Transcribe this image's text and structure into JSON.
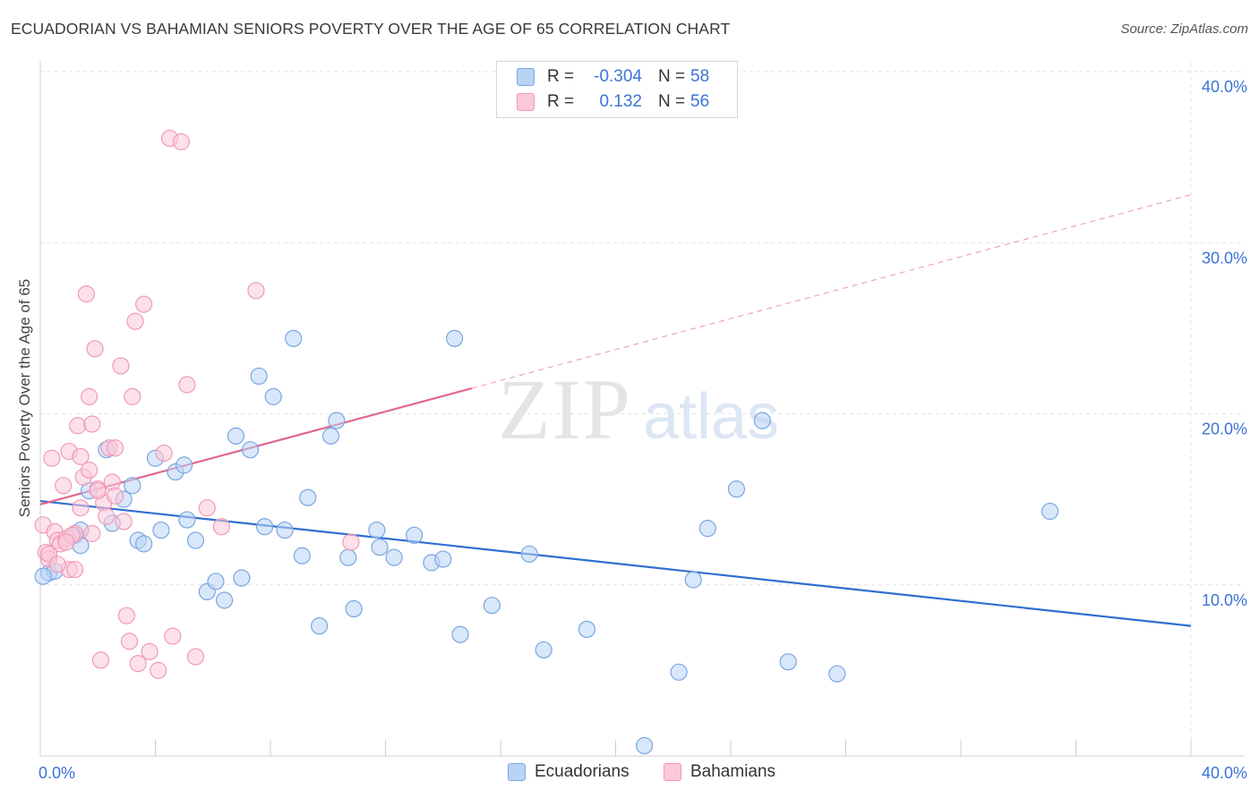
{
  "title": "ECUADORIAN VS BAHAMIAN SENIORS POVERTY OVER THE AGE OF 65 CORRELATION CHART",
  "source": "Source: ZipAtlas.com",
  "watermark": {
    "zip": "ZIP",
    "atlas": "atlas"
  },
  "legend": {
    "rows": [
      {
        "label": "R =",
        "r": "-0.304",
        "n_label": "N =",
        "n": "58",
        "fill": "#b9d3f5",
        "stroke": "#7aa6e0"
      },
      {
        "label": "R =",
        "r": "0.132",
        "n_label": "N =",
        "n": "56",
        "fill": "#fbc8d8",
        "stroke": "#f09ab6"
      }
    ]
  },
  "bottom_legend": {
    "ecuadorians": "Ecuadorians",
    "bahamians": "Bahamians"
  },
  "chart_data": {
    "type": "scatter",
    "title": "ECUADORIAN VS BAHAMIAN SENIORS POVERTY OVER THE AGE OF 65 CORRELATION CHART",
    "ylabel": "Seniors Poverty Over the Age of 65",
    "xlabel": "",
    "xlim": [
      0,
      40
    ],
    "ylim": [
      0,
      40
    ],
    "x_tick_labels": [
      "0.0%",
      "40.0%"
    ],
    "y_tick_labels": [
      "10.0%",
      "20.0%",
      "30.0%",
      "40.0%"
    ],
    "y_ticks": [
      10,
      20,
      30,
      40
    ],
    "series": [
      {
        "name": "Ecuadorians",
        "color": "#7aa6e0",
        "fill": "#b9d3f5",
        "line_color": "#2f6fd0",
        "trend": {
          "x0": 0,
          "y0": 14.9,
          "x1": 40,
          "y1": 7.6,
          "dashed_from": null
        },
        "points": [
          [
            0.3,
            10.7
          ],
          [
            0.5,
            10.8
          ],
          [
            1.2,
            12.9
          ],
          [
            1.4,
            12.3
          ],
          [
            1.4,
            13.2
          ],
          [
            1.7,
            15.5
          ],
          [
            2.3,
            17.9
          ],
          [
            2.5,
            13.6
          ],
          [
            2.9,
            15.0
          ],
          [
            3.2,
            15.8
          ],
          [
            3.4,
            12.6
          ],
          [
            3.6,
            12.4
          ],
          [
            4.0,
            17.4
          ],
          [
            4.2,
            13.2
          ],
          [
            4.7,
            16.6
          ],
          [
            5.0,
            17.0
          ],
          [
            5.1,
            13.8
          ],
          [
            5.4,
            12.6
          ],
          [
            5.8,
            9.6
          ],
          [
            6.1,
            10.2
          ],
          [
            6.4,
            9.1
          ],
          [
            6.8,
            18.7
          ],
          [
            7.0,
            10.4
          ],
          [
            7.3,
            17.9
          ],
          [
            7.6,
            22.2
          ],
          [
            7.8,
            13.4
          ],
          [
            8.1,
            21.0
          ],
          [
            8.5,
            13.2
          ],
          [
            8.8,
            24.4
          ],
          [
            9.1,
            11.7
          ],
          [
            9.3,
            15.1
          ],
          [
            9.7,
            7.6
          ],
          [
            10.1,
            18.7
          ],
          [
            10.3,
            19.6
          ],
          [
            10.7,
            11.6
          ],
          [
            10.9,
            8.6
          ],
          [
            11.7,
            13.2
          ],
          [
            11.8,
            12.2
          ],
          [
            12.3,
            11.6
          ],
          [
            13.0,
            12.9
          ],
          [
            13.6,
            11.3
          ],
          [
            14.0,
            11.5
          ],
          [
            14.4,
            24.4
          ],
          [
            14.6,
            7.1
          ],
          [
            15.7,
            8.8
          ],
          [
            17.0,
            11.8
          ],
          [
            17.5,
            6.2
          ],
          [
            19.0,
            7.4
          ],
          [
            21.0,
            0.6
          ],
          [
            22.2,
            4.9
          ],
          [
            22.7,
            10.3
          ],
          [
            23.2,
            13.3
          ],
          [
            24.2,
            15.6
          ],
          [
            25.1,
            19.6
          ],
          [
            26.0,
            5.5
          ],
          [
            27.7,
            4.8
          ],
          [
            35.1,
            14.3
          ],
          [
            0.1,
            10.5
          ]
        ]
      },
      {
        "name": "Bahamians",
        "color": "#f09ab6",
        "fill": "#fbc8d8",
        "line_color": "#e0678f",
        "trend": {
          "x0": 0,
          "y0": 14.7,
          "x1": 40,
          "y1": 32.8,
          "solid_until": 15
        },
        "points": [
          [
            0.1,
            13.5
          ],
          [
            0.2,
            11.9
          ],
          [
            0.3,
            11.5
          ],
          [
            0.4,
            17.4
          ],
          [
            0.5,
            13.1
          ],
          [
            0.6,
            12.6
          ],
          [
            0.7,
            12.4
          ],
          [
            0.8,
            15.8
          ],
          [
            0.9,
            12.7
          ],
          [
            1.0,
            17.8
          ],
          [
            1.0,
            10.9
          ],
          [
            1.2,
            13.0
          ],
          [
            1.3,
            19.3
          ],
          [
            1.4,
            17.5
          ],
          [
            1.4,
            14.5
          ],
          [
            1.5,
            16.3
          ],
          [
            1.6,
            27.0
          ],
          [
            1.7,
            21.0
          ],
          [
            1.7,
            16.7
          ],
          [
            1.8,
            19.4
          ],
          [
            1.9,
            23.8
          ],
          [
            2.0,
            15.6
          ],
          [
            2.1,
            5.6
          ],
          [
            2.2,
            14.8
          ],
          [
            2.3,
            14.0
          ],
          [
            2.4,
            18.0
          ],
          [
            2.5,
            16.0
          ],
          [
            2.6,
            15.2
          ],
          [
            2.8,
            22.8
          ],
          [
            2.9,
            13.7
          ],
          [
            3.0,
            8.2
          ],
          [
            3.1,
            6.7
          ],
          [
            3.2,
            21.0
          ],
          [
            3.3,
            25.4
          ],
          [
            3.4,
            5.4
          ],
          [
            3.6,
            26.4
          ],
          [
            3.8,
            6.1
          ],
          [
            4.1,
            5.0
          ],
          [
            4.3,
            17.7
          ],
          [
            4.5,
            36.1
          ],
          [
            4.6,
            7.0
          ],
          [
            4.9,
            35.9
          ],
          [
            5.1,
            21.7
          ],
          [
            5.4,
            5.8
          ],
          [
            5.8,
            14.5
          ],
          [
            6.3,
            13.4
          ],
          [
            7.5,
            27.2
          ],
          [
            10.8,
            12.5
          ],
          [
            0.3,
            11.8
          ],
          [
            0.6,
            11.2
          ],
          [
            1.1,
            12.9
          ],
          [
            1.8,
            13.0
          ],
          [
            2.0,
            15.5
          ],
          [
            2.6,
            18.0
          ],
          [
            1.2,
            10.9
          ],
          [
            0.9,
            12.5
          ]
        ]
      }
    ]
  }
}
